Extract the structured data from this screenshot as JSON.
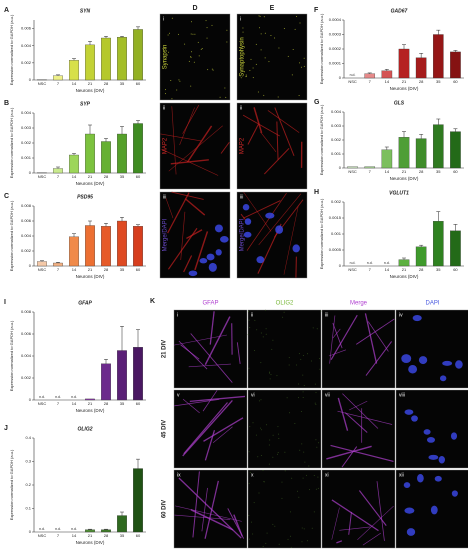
{
  "chart_data": [
    {
      "type": "bar",
      "panel": "A",
      "title": "SYN",
      "x_label": "Neurons (DIV)",
      "y_label": "Expression normalized to GAPDH (a.u.)",
      "categories": [
        "NSC",
        "7",
        "14",
        "21",
        "28",
        "35",
        "60"
      ],
      "values": [
        2e-05,
        0.0005,
        0.0023,
        0.0041,
        0.0049,
        0.005,
        0.0059
      ],
      "errors": [
        null,
        0.0001,
        0.0002,
        0.0004,
        0.0002,
        0.0001,
        0.0003
      ],
      "colors": [
        "#f2f5c4",
        "#eef089",
        "#d7e04a",
        "#c3d236",
        "#b5c82c",
        "#a4be28",
        "#93b024"
      ],
      "ylim": [
        0,
        0.007
      ],
      "yticks": [
        0,
        0.002,
        0.004,
        0.006
      ]
    },
    {
      "type": "bar",
      "panel": "B",
      "title": "SYP",
      "x_label": "Neurons (DIV)",
      "y_label": "Expression normalized to GAPDH (a.u.)",
      "categories": [
        "NSC",
        "7",
        "14",
        "21",
        "28",
        "35",
        "60"
      ],
      "values": [
        2e-05,
        0.0003,
        0.0012,
        0.0026,
        0.0021,
        0.0026,
        0.0033
      ],
      "errors": [
        null,
        0.0001,
        0.0001,
        0.0006,
        0.0002,
        0.0005,
        0.0002
      ],
      "colors": [
        "#e9f5d2",
        "#c9ea8e",
        "#9dd65a",
        "#7cc23e",
        "#66b032",
        "#55a02a",
        "#3f8c22"
      ],
      "ylim": [
        0,
        0.004
      ],
      "yticks": [
        0,
        0.001,
        0.002,
        0.003,
        0.004
      ]
    },
    {
      "type": "bar",
      "panel": "C",
      "title": "PSD95",
      "x_label": "Neurons (DIV)",
      "y_label": "Expression normalized to GAPDH (a.u.)",
      "categories": [
        "NSC",
        "7",
        "14",
        "21",
        "28",
        "35",
        "60"
      ],
      "values": [
        0.0006,
        0.0004,
        0.0039,
        0.0054,
        0.0053,
        0.006,
        0.0053
      ],
      "errors": [
        0.0001,
        0.0001,
        0.0004,
        0.0006,
        0.0004,
        0.0005,
        0.0002
      ],
      "colors": [
        "#f4c9a8",
        "#f3b183",
        "#f08a4a",
        "#ec6f32",
        "#e65a28",
        "#de4a22",
        "#d63e1e"
      ],
      "ylim": [
        0,
        0.008
      ],
      "yticks": [
        0,
        0.002,
        0.004,
        0.006,
        0.008
      ]
    },
    {
      "type": "bar",
      "panel": "F",
      "title": "GAD67",
      "x_label": "Neurons (DIV)",
      "y_label": "Expression normalized to GAPDH (a.u.)",
      "categories": [
        "NSC",
        "7",
        "14",
        "21",
        "28",
        "35",
        "60"
      ],
      "values": [
        null,
        3e-05,
        5e-05,
        0.0002,
        0.00014,
        0.0003,
        0.00018
      ],
      "value_labels": [
        "n.d.",
        null,
        null,
        null,
        null,
        null,
        null
      ],
      "errors": [
        null,
        5e-06,
        1e-05,
        3e-05,
        3e-05,
        3e-05,
        1e-05
      ],
      "colors": [
        "#f2c4c4",
        "#e68a8a",
        "#d45454",
        "#b52222",
        "#a51c1c",
        "#951616",
        "#851212"
      ],
      "ylim": [
        0,
        0.0004
      ],
      "yticks": [
        0,
        0.0001,
        0.0002,
        0.0003,
        0.0004
      ]
    },
    {
      "type": "bar",
      "panel": "G",
      "title": "GLS",
      "x_label": "Neurons (DIV)",
      "y_label": "Expression normalized to GAPDH (a.u.)",
      "categories": [
        "NSC",
        "7",
        "14",
        "21",
        "28",
        "35",
        "60"
      ],
      "values": [
        0.0001,
        0.0001,
        0.0013,
        0.0022,
        0.0021,
        0.0031,
        0.0026
      ],
      "errors": [
        null,
        null,
        0.0002,
        0.0004,
        0.0003,
        0.0004,
        0.0002
      ],
      "colors": [
        "#cfe8c4",
        "#a9d694",
        "#7cbf5e",
        "#4f9e36",
        "#3f8c2a",
        "#2f7a20",
        "#236a18"
      ],
      "ylim": [
        0,
        0.004
      ],
      "yticks": [
        0,
        0.001,
        0.002,
        0.003,
        0.004
      ]
    },
    {
      "type": "bar",
      "panel": "H",
      "title": "VGLUT1",
      "x_label": "Neurons (DIV)",
      "y_label": "Expression normalized to GAPDH (a.u.)",
      "categories": [
        "NSC",
        "7",
        "14",
        "21",
        "28",
        "35",
        "60"
      ],
      "values": [
        null,
        null,
        null,
        0.0002,
        0.0006,
        0.0014,
        0.0011
      ],
      "value_labels": [
        "n.d.",
        "n.d.",
        "n.d.",
        null,
        null,
        null,
        null
      ],
      "errors": [
        null,
        null,
        null,
        5e-05,
        5e-05,
        0.0003,
        0.0002
      ],
      "colors": [
        "#cfe8c4",
        "#a9d694",
        "#7cbf5e",
        "#5cb040",
        "#3f9a2c",
        "#2f8220",
        "#236a18"
      ],
      "ylim": [
        0,
        0.002
      ],
      "yticks": [
        0,
        0.0005,
        0.001,
        0.0015,
        0.002
      ]
    },
    {
      "type": "bar",
      "panel": "I",
      "title": "GFAP",
      "x_label": "Neurons (DIV)",
      "y_label": "Expression normalized to GAPDH (a.u.)",
      "categories": [
        "NSC",
        "7",
        "14",
        "21",
        "28",
        "35",
        "60"
      ],
      "values": [
        null,
        null,
        null,
        0.0001,
        0.0033,
        0.0045,
        0.0048
      ],
      "value_labels": [
        "n.d.",
        "n.d.",
        "n.d.",
        null,
        null,
        null,
        null
      ],
      "errors": [
        null,
        null,
        null,
        null,
        0.0004,
        0.0022,
        0.0016
      ],
      "colors": [
        "#e6d0ec",
        "#d4b0e0",
        "#b98acc",
        "#8a3aa8",
        "#6c2a8c",
        "#5a2076",
        "#4a1862"
      ],
      "ylim": [
        0,
        0.008
      ],
      "yticks": [
        0,
        0.002,
        0.004,
        0.006,
        0.008
      ]
    },
    {
      "type": "bar",
      "panel": "J",
      "title": "OLIG2",
      "x_label": "Neurons (DIV)",
      "y_label": "Expression normalized to GAPDH (a.u.)",
      "categories": [
        "NSC",
        "7",
        "14",
        "21",
        "28",
        "35",
        "60"
      ],
      "values": [
        null,
        null,
        null,
        0.01,
        0.01,
        0.07,
        0.27
      ],
      "value_labels": [
        "n.d.",
        "n.d.",
        "n.d.",
        null,
        null,
        null,
        null
      ],
      "errors": [
        null,
        null,
        null,
        0.002,
        0.002,
        0.015,
        0.04
      ],
      "colors": [
        "#cfe0c4",
        "#a9c694",
        "#7caa5e",
        "#4f8a36",
        "#3f7a2a",
        "#2f6a20",
        "#1f5214"
      ],
      "ylim": [
        0,
        0.4
      ],
      "yticks": [
        0,
        0.1,
        0.2,
        0.3,
        0.4
      ]
    }
  ],
  "images": {
    "D": {
      "label": "D",
      "rows": [
        {
          "numeral": "i",
          "stain": "Synapsin",
          "color": "#c8d23a"
        },
        {
          "numeral": "ii",
          "stain": "MAP2",
          "color": "#d22a2a"
        },
        {
          "numeral": "iii",
          "stain": "Merge/DAPI",
          "color": "#6a4ac8"
        }
      ]
    },
    "E": {
      "label": "E",
      "rows": [
        {
          "numeral": "i",
          "stain": "Synaptophysin",
          "color": "#c8d23a"
        },
        {
          "numeral": "ii",
          "stain": "MAP2",
          "color": "#d22a2a"
        },
        {
          "numeral": "iii",
          "stain": "Merge/DAPI",
          "color": "#6a4ac8"
        }
      ]
    },
    "K": {
      "label": "K",
      "columns": [
        {
          "name": "GFAP",
          "color": "#b040d0"
        },
        {
          "name": "OLIG2",
          "color": "#7ab83a"
        },
        {
          "name": "Merge",
          "color": "#b040d0"
        },
        {
          "name": "DAPI",
          "color": "#4a5ae0"
        }
      ],
      "rows": [
        "21 DIV",
        "45 DIV",
        "60 DIV"
      ],
      "numerals": [
        [
          "i",
          "ii",
          "iii",
          "iv"
        ],
        [
          "v",
          "vi",
          "vii",
          "viii"
        ],
        [
          "ix",
          "x",
          "xi",
          "xii"
        ]
      ]
    }
  }
}
